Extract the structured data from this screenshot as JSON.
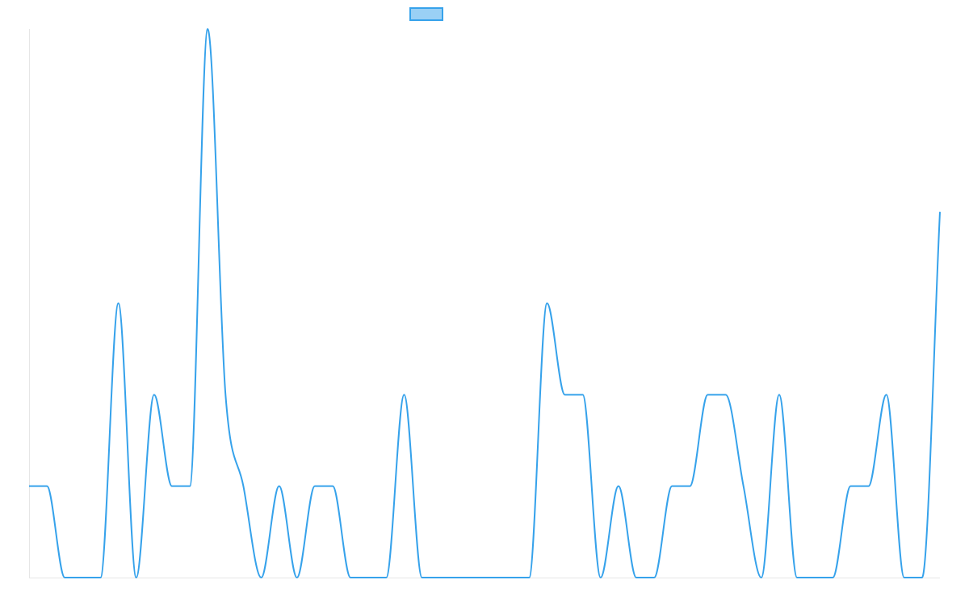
{
  "chart_data": {
    "type": "line",
    "title": "",
    "xlabel": "",
    "ylabel": "",
    "grid": false,
    "legend": "top-center",
    "x": [
      0,
      1,
      2,
      3,
      4,
      5,
      6,
      7,
      8,
      9,
      10,
      11,
      12,
      13,
      14,
      15,
      16,
      17,
      18,
      19,
      20,
      21,
      22,
      23,
      24,
      25,
      26,
      27,
      28,
      29,
      30,
      31,
      32,
      33,
      34,
      35,
      36,
      37,
      38,
      39,
      40,
      41,
      42,
      43,
      44,
      45,
      46,
      47,
      48,
      49,
      50,
      51
    ],
    "ylim": [
      0,
      6
    ],
    "series": [
      {
        "values": [
          1,
          1,
          0,
          0,
          0,
          3,
          0,
          2,
          1,
          1,
          6,
          2,
          1,
          0,
          1,
          0,
          1,
          1,
          0,
          0,
          0,
          2,
          0,
          0,
          0,
          0,
          0,
          0,
          0,
          3,
          2,
          2,
          0,
          1,
          0,
          0,
          1,
          1,
          2,
          2,
          1,
          0,
          2,
          0,
          0,
          0,
          1,
          1,
          2,
          0,
          0,
          4
        ],
        "color": "#36a2eb",
        "fill": "#9ad0f5"
      }
    ]
  }
}
